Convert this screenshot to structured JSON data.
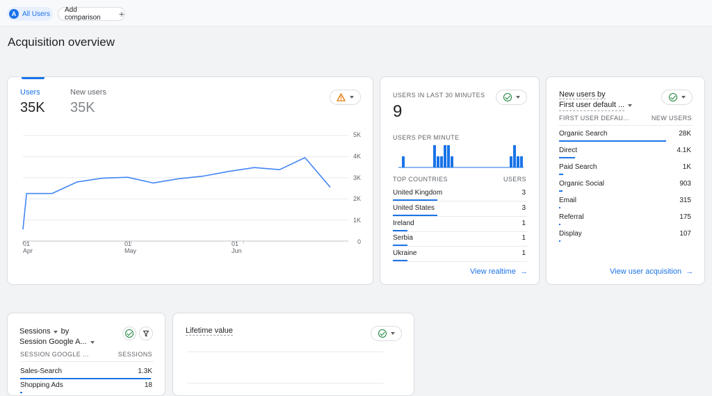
{
  "topbar": {
    "audience_chip": {
      "avatar": "A",
      "label": "All Users"
    },
    "add_comparison": {
      "label": "Add comparison",
      "icon": "plus-icon"
    }
  },
  "page": {
    "title": "Acquisition overview"
  },
  "overview_card": {
    "metrics": [
      {
        "label": "Users",
        "value": "35K",
        "active": true
      },
      {
        "label": "New users",
        "value": "35K",
        "active": false
      }
    ],
    "alert_icon": "warning-icon",
    "y_ticks": [
      "5K",
      "4K",
      "3K",
      "2K",
      "1K",
      "0"
    ],
    "x_ticks": [
      {
        "day": "01",
        "month": "Apr"
      },
      {
        "day": "01",
        "month": "May"
      },
      {
        "day": "01",
        "month": "Jun"
      }
    ],
    "chart_data": {
      "type": "line",
      "title": "",
      "xlabel": "",
      "ylabel": "",
      "ylim": [
        0,
        5000
      ],
      "x_range": [
        "2023-04-01",
        "2023-06-30"
      ],
      "grid": true,
      "series": [
        {
          "values": [
            {
              "x": "2023-04-01",
              "y": 550
            },
            {
              "x": "2023-04-02",
              "y": 2250
            },
            {
              "x": "2023-04-09",
              "y": 2250
            },
            {
              "x": "2023-04-16",
              "y": 2800
            },
            {
              "x": "2023-04-23",
              "y": 2980
            },
            {
              "x": "2023-04-30",
              "y": 3020
            },
            {
              "x": "2023-05-07",
              "y": 2750
            },
            {
              "x": "2023-05-14",
              "y": 2950
            },
            {
              "x": "2023-05-21",
              "y": 3080
            },
            {
              "x": "2023-05-28",
              "y": 3300
            },
            {
              "x": "2023-06-04",
              "y": 3480
            },
            {
              "x": "2023-06-11",
              "y": 3380
            },
            {
              "x": "2023-06-18",
              "y": 3950
            },
            {
              "x": "2023-06-25",
              "y": 2550
            }
          ],
          "color": "#4285f4"
        }
      ]
    }
  },
  "realtime_card": {
    "title": "USERS IN LAST 30 MINUTES",
    "value": "9",
    "per_minute_label": "USERS PER MINUTE",
    "per_minute_bars": [
      0,
      1,
      0,
      0,
      0,
      0,
      0,
      0,
      0,
      0,
      2,
      1,
      1,
      2,
      2,
      1,
      0,
      0,
      0,
      0,
      0,
      0,
      0,
      0,
      0,
      0,
      0,
      0,
      0,
      0,
      0,
      0,
      1,
      2,
      1,
      1
    ],
    "countries_header": "TOP COUNTRIES",
    "users_header": "USERS",
    "countries": [
      {
        "name": "United Kingdom",
        "users": "3",
        "share": 1.0
      },
      {
        "name": "United States",
        "users": "3",
        "share": 1.0
      },
      {
        "name": "Ireland",
        "users": "1",
        "share": 0.33
      },
      {
        "name": "Serbia",
        "users": "1",
        "share": 0.33
      },
      {
        "name": "Ukraine",
        "users": "1",
        "share": 0.33
      }
    ],
    "link": "View realtime"
  },
  "new_users_card": {
    "title_line1": "New users by",
    "title_line2": "First user default ...",
    "col1": "FIRST USER DEFAU...",
    "col2": "NEW USERS",
    "rows": [
      {
        "label": "Organic Search",
        "value": "28K",
        "share": 1.0
      },
      {
        "label": "Direct",
        "value": "4.1K",
        "share": 0.15
      },
      {
        "label": "Paid Search",
        "value": "1K",
        "share": 0.04
      },
      {
        "label": "Organic Social",
        "value": "903",
        "share": 0.03
      },
      {
        "label": "Email",
        "value": "315",
        "share": 0.01
      },
      {
        "label": "Referral",
        "value": "175",
        "share": 0.006
      },
      {
        "label": "Display",
        "value": "107",
        "share": 0.004
      }
    ],
    "link": "View user acquisition"
  },
  "sessions_card": {
    "title_line1": "Sessions",
    "title_by": "by",
    "title_line2": "Session Google A...",
    "col1": "SESSION GOOGLE ...",
    "col2": "SESSIONS",
    "rows": [
      {
        "label": "Sales-Search",
        "value": "1.3K",
        "share": 1.0
      },
      {
        "label": "Shopping Ads",
        "value": "18",
        "share": 0.014
      }
    ]
  },
  "ltv_card": {
    "title": "Lifetime value"
  }
}
